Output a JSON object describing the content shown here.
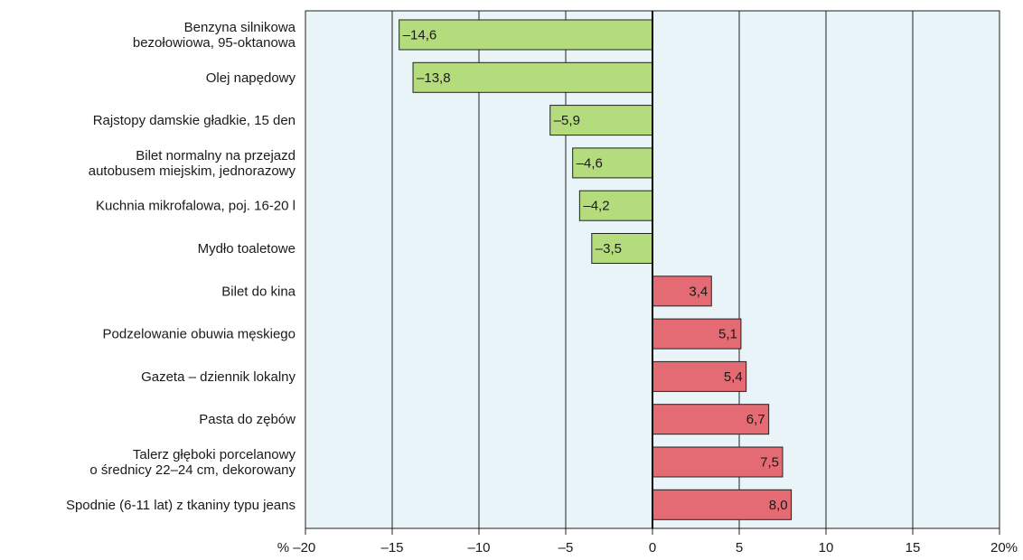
{
  "chart_data": {
    "type": "bar",
    "orientation": "horizontal",
    "categories": [
      [
        "Benzyna silnikowa",
        "bezołowiowa, 95-oktanowa"
      ],
      [
        "Olej napędowy"
      ],
      [
        "Rajstopy damskie gładkie, 15 den"
      ],
      [
        "Bilet normalny na przejazd",
        "autobusem miejskim, jednorazowy"
      ],
      [
        "Kuchnia mikrofalowa, poj. 16-20 l"
      ],
      [
        "Mydło toaletowe"
      ],
      [
        "Bilet do kina"
      ],
      [
        "Podzelowanie obuwia męskiego"
      ],
      [
        "Gazeta – dziennik lokalny"
      ],
      [
        "Pasta do zębów"
      ],
      [
        "Talerz głęboki porcelanowy",
        "o średnicy 22–24 cm, dekorowany"
      ],
      [
        "Spodnie (6-11 lat) z tkaniny typu jeans"
      ]
    ],
    "values": [
      -14.6,
      -13.8,
      -5.9,
      -4.6,
      -4.2,
      -3.5,
      3.4,
      5.1,
      5.4,
      6.7,
      7.5,
      8.0
    ],
    "value_labels": [
      "–14,6",
      "–13,8",
      "–5,9",
      "–4,6",
      "–4,2",
      "–3,5",
      "3,4",
      "5,1",
      "5,4",
      "6,7",
      "7,5",
      "8,0"
    ],
    "xlim": [
      -20,
      20
    ],
    "x_ticks": [
      -20,
      -15,
      -10,
      -5,
      0,
      5,
      10,
      15,
      20
    ],
    "x_tick_labels": [
      "% –20",
      "–15",
      "–10",
      "–5",
      "0",
      "5",
      "10",
      "15",
      "20%"
    ],
    "grid": true,
    "colors": {
      "negative": "#b5dc7c",
      "positive": "#e46b73",
      "plot_background": "#e8f4f8",
      "grid": "#222222"
    }
  }
}
